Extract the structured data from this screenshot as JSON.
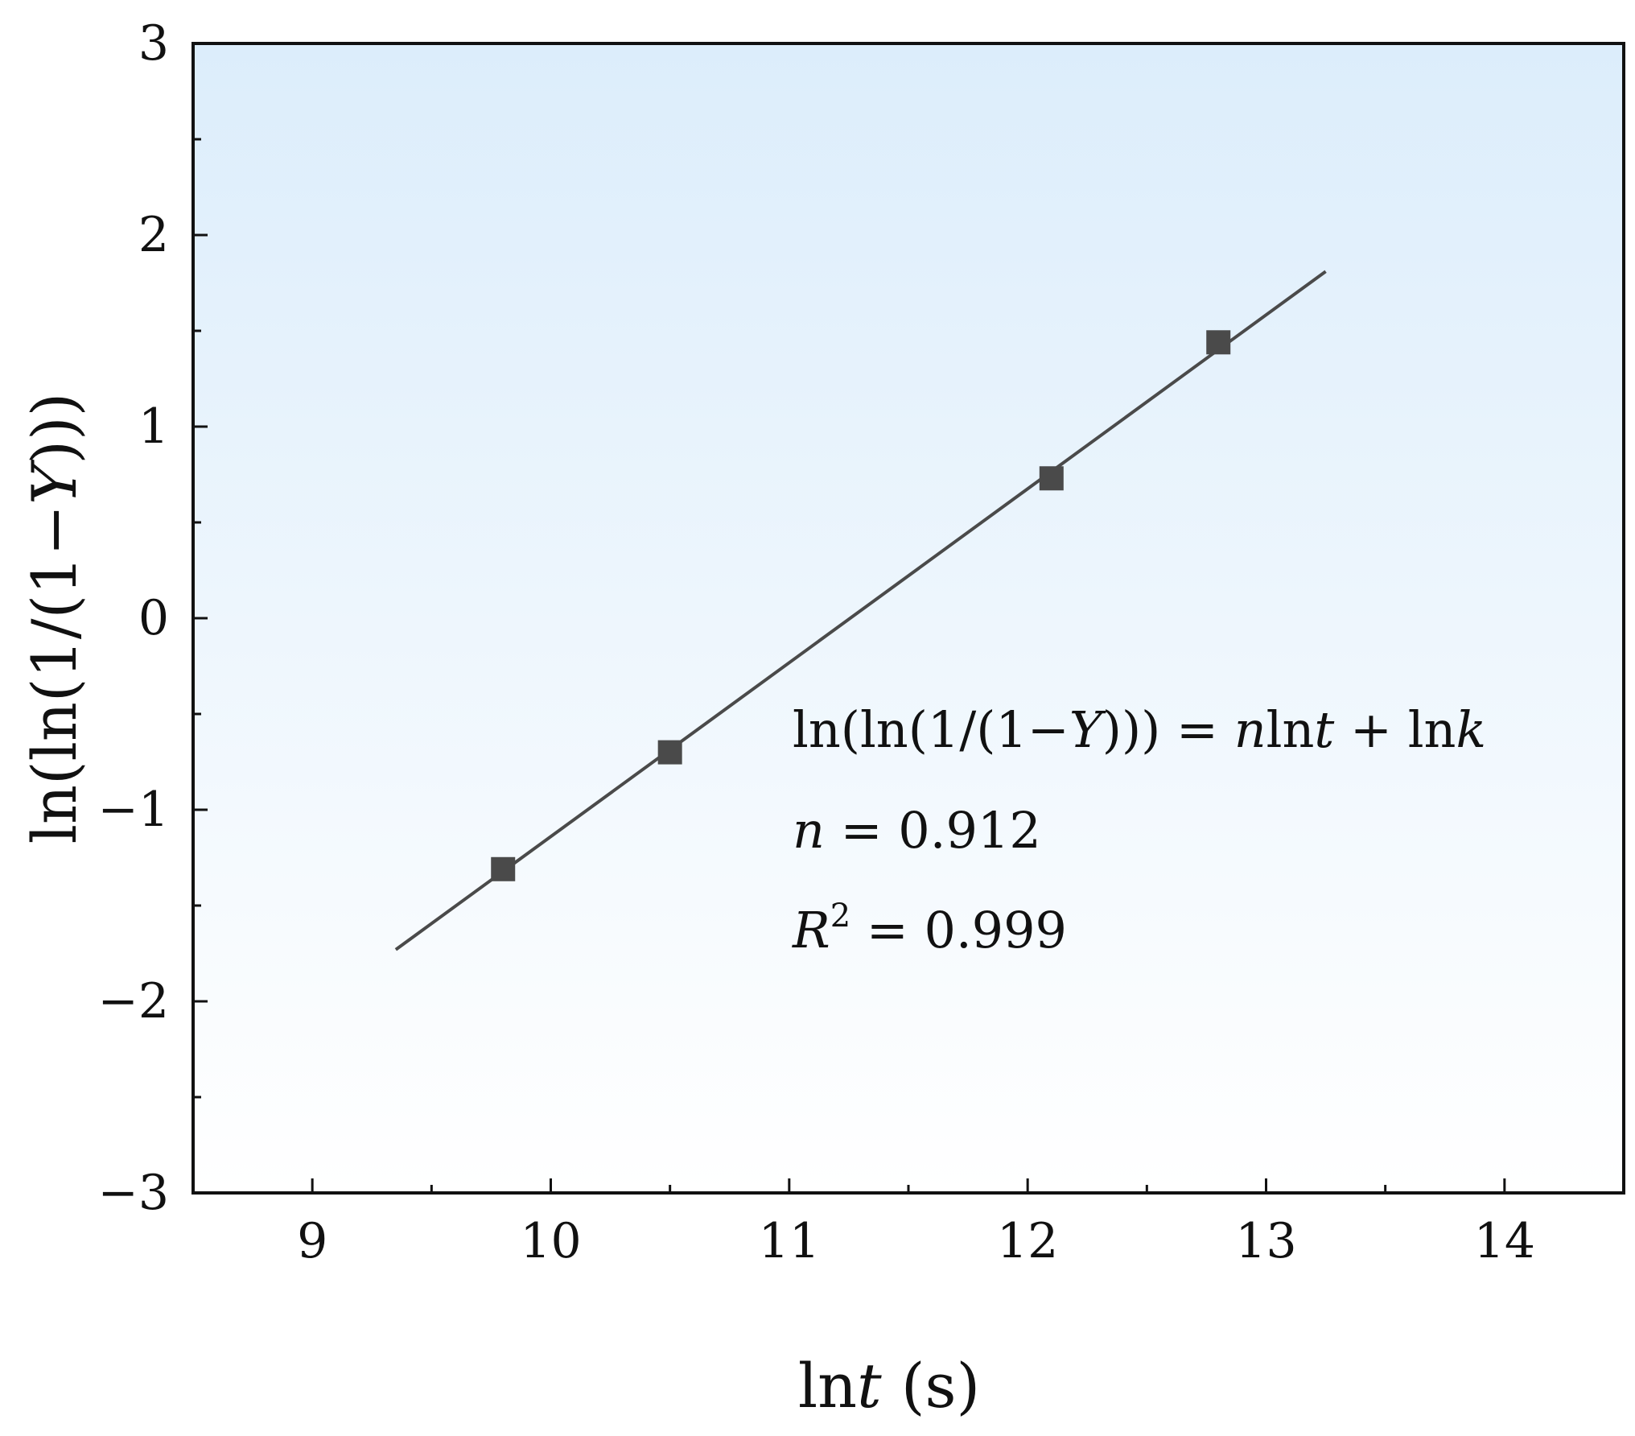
{
  "chart_data": {
    "type": "scatter",
    "title": "",
    "xlabel": {
      "prefix": "ln",
      "italic": "t",
      "suffix": " (s)"
    },
    "ylabel": {
      "prefix": "ln(ln(1/(1−",
      "italic": "Y",
      "suffix": ")))"
    },
    "xlim": [
      8.5,
      14.5
    ],
    "ylim": [
      -3,
      3
    ],
    "x_ticks": [
      9,
      10,
      11,
      12,
      13,
      14
    ],
    "x_minor_ticks": [
      9.5,
      10.5,
      11.5,
      12.5,
      13.5
    ],
    "y_ticks": [
      -3,
      -2,
      -1,
      0,
      1,
      2,
      3
    ],
    "y_minor_ticks": [
      -2.5,
      -1.5,
      -0.5,
      0.5,
      1.5,
      2.5
    ],
    "tick_labels_y": [
      "−3",
      "−2",
      "−1",
      "0",
      "1",
      "2",
      "3"
    ],
    "grid": false,
    "background_gradient": {
      "top": "#dcedfb",
      "bottom": "#ffffff"
    },
    "marker_color": "#4a4a4a",
    "line_color": "#4a4a4a",
    "series": [
      {
        "points": [
          {
            "x": 9.8,
            "y": -1.31
          },
          {
            "x": 10.5,
            "y": -0.7
          },
          {
            "x": 12.1,
            "y": 0.73
          },
          {
            "x": 12.8,
            "y": 1.44
          }
        ]
      }
    ],
    "fit_line": {
      "x": [
        9.35,
        13.25
      ],
      "y": [
        -1.73,
        1.81
      ]
    },
    "annotations": {
      "equation": [
        {
          "t": "ln(ln(1/(1−",
          "i": false
        },
        {
          "t": "Y",
          "i": true
        },
        {
          "t": "))) = ",
          "i": false
        },
        {
          "t": "n",
          "i": true
        },
        {
          "t": "ln",
          "i": false
        },
        {
          "t": "t",
          "i": true
        },
        {
          "t": " + ln",
          "i": false
        },
        {
          "t": "k",
          "i": true
        }
      ],
      "n_line": {
        "var": "n",
        "rest": " = 0.912"
      },
      "r2_line": {
        "var": "R",
        "sup": "2",
        "rest": " = 0.999"
      }
    }
  }
}
